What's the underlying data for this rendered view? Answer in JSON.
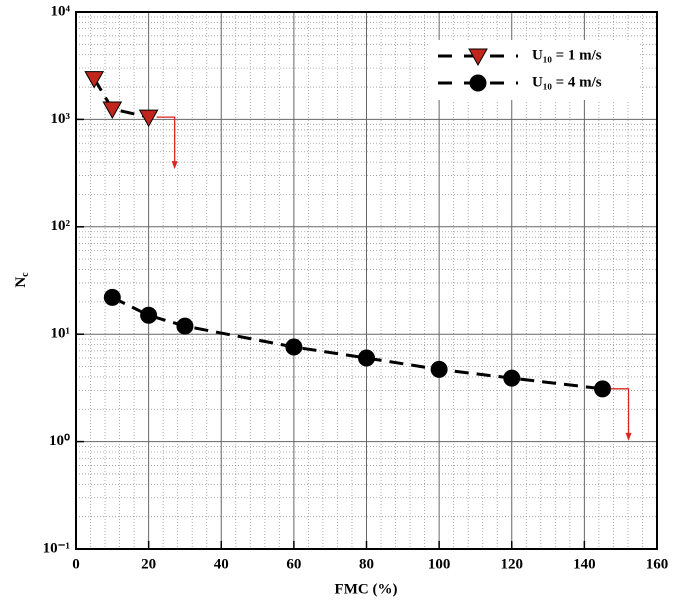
{
  "chart_data": {
    "type": "line",
    "xlabel": "FMC (%)",
    "ylabel": "N",
    "ylabel_sub": "c",
    "log_y": true,
    "grid": true,
    "legend": "upper right",
    "xlim": [
      0,
      160
    ],
    "xticks": [
      0,
      20,
      40,
      60,
      80,
      100,
      120,
      140,
      160
    ],
    "ylim": [
      0.1,
      10000
    ],
    "yticks": [
      {
        "value": 0.1,
        "label": "10⁻¹"
      },
      {
        "value": 1,
        "label": "10⁰"
      },
      {
        "value": 10,
        "label": "10¹"
      },
      {
        "value": 100,
        "label": "10²"
      },
      {
        "value": 1000,
        "label": "10³"
      },
      {
        "value": 10000,
        "label": "10⁴"
      }
    ],
    "series": [
      {
        "name": "U₁₀ = 1 m/s",
        "color": "#c0261c",
        "marker": "triangle",
        "x": [
          5,
          10,
          20
        ],
        "values": [
          2400,
          1250,
          1050
        ]
      },
      {
        "name": "U₁₀ = 4 m/s",
        "color": "#000000",
        "marker": "circle",
        "x": [
          10,
          20,
          30,
          60,
          80,
          100,
          120,
          145
        ],
        "values": [
          22,
          15,
          11.9,
          7.6,
          6,
          4.7,
          3.9,
          3.1
        ]
      }
    ]
  }
}
